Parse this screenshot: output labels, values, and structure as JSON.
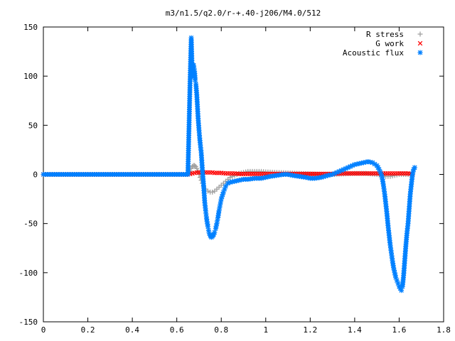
{
  "chart_data": {
    "type": "scatter",
    "title": "m3/n1.5/q2.0/r-+.40-j206/M4.0/512",
    "xlabel": "",
    "ylabel": "",
    "xlim": [
      0,
      1.8
    ],
    "ylim": [
      -150,
      150
    ],
    "x_ticks": [
      "0",
      "0.2",
      "0.4",
      "0.6",
      "0.8",
      "1",
      "1.2",
      "1.4",
      "1.6",
      "1.8"
    ],
    "y_ticks": [
      "150",
      "100",
      "50",
      "0",
      "-50",
      "-100",
      "-150"
    ],
    "grid": false,
    "legend_position": "top-right",
    "series": [
      {
        "name": "R stress",
        "marker": "+",
        "color": "#a0a0a0",
        "points": [
          [
            0.0,
            0
          ],
          [
            0.1,
            0
          ],
          [
            0.2,
            0
          ],
          [
            0.3,
            0
          ],
          [
            0.4,
            0
          ],
          [
            0.5,
            0
          ],
          [
            0.6,
            0
          ],
          [
            0.65,
            0
          ],
          [
            0.66,
            3
          ],
          [
            0.665,
            6
          ],
          [
            0.67,
            8
          ],
          [
            0.675,
            9
          ],
          [
            0.68,
            9
          ],
          [
            0.685,
            8
          ],
          [
            0.69,
            6
          ],
          [
            0.695,
            3
          ],
          [
            0.7,
            0
          ],
          [
            0.705,
            -3
          ],
          [
            0.71,
            -6
          ],
          [
            0.715,
            -9
          ],
          [
            0.72,
            -12
          ],
          [
            0.73,
            -15
          ],
          [
            0.74,
            -17
          ],
          [
            0.75,
            -18
          ],
          [
            0.76,
            -18
          ],
          [
            0.77,
            -17
          ],
          [
            0.78,
            -15
          ],
          [
            0.79,
            -13
          ],
          [
            0.8,
            -11
          ],
          [
            0.81,
            -9
          ],
          [
            0.82,
            -7
          ],
          [
            0.83,
            -5
          ],
          [
            0.84,
            -3
          ],
          [
            0.85,
            -2
          ],
          [
            0.86,
            -1
          ],
          [
            0.87,
            0
          ],
          [
            0.88,
            1
          ],
          [
            0.9,
            2
          ],
          [
            0.92,
            3
          ],
          [
            0.95,
            3
          ],
          [
            0.98,
            3
          ],
          [
            1.0,
            2.5
          ],
          [
            1.05,
            2
          ],
          [
            1.1,
            1.5
          ],
          [
            1.15,
            1
          ],
          [
            1.2,
            0.5
          ],
          [
            1.25,
            0
          ],
          [
            1.3,
            0
          ],
          [
            1.35,
            0.5
          ],
          [
            1.4,
            1
          ],
          [
            1.45,
            1
          ],
          [
            1.5,
            0
          ],
          [
            1.52,
            -1
          ],
          [
            1.54,
            -2
          ],
          [
            1.56,
            -2
          ],
          [
            1.58,
            -1
          ],
          [
            1.6,
            0
          ],
          [
            1.62,
            0
          ],
          [
            1.64,
            0
          ],
          [
            1.66,
            0
          ]
        ]
      },
      {
        "name": "G work",
        "marker": "x",
        "color": "#ff0000",
        "points": [
          [
            0.0,
            0
          ],
          [
            0.1,
            0
          ],
          [
            0.2,
            0
          ],
          [
            0.3,
            0
          ],
          [
            0.4,
            0
          ],
          [
            0.5,
            0
          ],
          [
            0.6,
            0
          ],
          [
            0.65,
            0
          ],
          [
            0.66,
            0.5
          ],
          [
            0.67,
            1
          ],
          [
            0.68,
            1.5
          ],
          [
            0.69,
            2
          ],
          [
            0.7,
            2
          ],
          [
            0.71,
            2
          ],
          [
            0.72,
            2
          ],
          [
            0.73,
            2
          ],
          [
            0.74,
            2
          ],
          [
            0.75,
            2
          ],
          [
            0.76,
            2
          ],
          [
            0.77,
            1.5
          ],
          [
            0.78,
            1.5
          ],
          [
            0.8,
            1.5
          ],
          [
            0.82,
            1
          ],
          [
            0.84,
            1
          ],
          [
            0.86,
            1
          ],
          [
            0.88,
            0.5
          ],
          [
            0.9,
            0.5
          ],
          [
            0.92,
            0.5
          ],
          [
            0.95,
            0.5
          ],
          [
            1.0,
            0.5
          ],
          [
            1.05,
            0.5
          ],
          [
            1.1,
            0.5
          ],
          [
            1.15,
            0.5
          ],
          [
            1.2,
            0.5
          ],
          [
            1.25,
            0.5
          ],
          [
            1.3,
            0.5
          ],
          [
            1.35,
            1
          ],
          [
            1.4,
            1
          ],
          [
            1.45,
            1
          ],
          [
            1.5,
            1
          ],
          [
            1.52,
            1
          ],
          [
            1.54,
            1
          ],
          [
            1.56,
            1
          ],
          [
            1.58,
            1
          ],
          [
            1.6,
            1
          ],
          [
            1.62,
            1
          ],
          [
            1.64,
            1
          ],
          [
            1.66,
            0.5
          ]
        ]
      },
      {
        "name": "Acoustic flux",
        "marker": "*",
        "color": "#0080ff",
        "points": [
          [
            0.0,
            0
          ],
          [
            0.05,
            0
          ],
          [
            0.1,
            0
          ],
          [
            0.15,
            0
          ],
          [
            0.2,
            0
          ],
          [
            0.25,
            0
          ],
          [
            0.3,
            0
          ],
          [
            0.35,
            0
          ],
          [
            0.4,
            0
          ],
          [
            0.45,
            0
          ],
          [
            0.5,
            0
          ],
          [
            0.55,
            0
          ],
          [
            0.6,
            0
          ],
          [
            0.62,
            0
          ],
          [
            0.64,
            0
          ],
          [
            0.65,
            0
          ],
          [
            0.66,
            97
          ],
          [
            0.665,
            139
          ],
          [
            0.67,
            100
          ],
          [
            0.673,
            111
          ],
          [
            0.676,
            111
          ],
          [
            0.68,
            105
          ],
          [
            0.683,
            96
          ],
          [
            0.686,
            92
          ],
          [
            0.69,
            81
          ],
          [
            0.693,
            69
          ],
          [
            0.696,
            57
          ],
          [
            0.7,
            45
          ],
          [
            0.703,
            37
          ],
          [
            0.706,
            30
          ],
          [
            0.71,
            22
          ],
          [
            0.713,
            12
          ],
          [
            0.716,
            2
          ],
          [
            0.72,
            -9
          ],
          [
            0.723,
            -19
          ],
          [
            0.726,
            -29
          ],
          [
            0.73,
            -37
          ],
          [
            0.733,
            -43
          ],
          [
            0.736,
            -48
          ],
          [
            0.74,
            -53
          ],
          [
            0.743,
            -57
          ],
          [
            0.746,
            -60
          ],
          [
            0.75,
            -62
          ],
          [
            0.753,
            -63
          ],
          [
            0.756,
            -64
          ],
          [
            0.76,
            -63
          ],
          [
            0.763,
            -62
          ],
          [
            0.766,
            -61
          ],
          [
            0.77,
            -59
          ],
          [
            0.775,
            -55
          ],
          [
            0.78,
            -50
          ],
          [
            0.785,
            -44
          ],
          [
            0.79,
            -37
          ],
          [
            0.795,
            -31
          ],
          [
            0.8,
            -25
          ],
          [
            0.81,
            -18
          ],
          [
            0.82,
            -12
          ],
          [
            0.83,
            -9
          ],
          [
            0.84,
            -8
          ],
          [
            0.86,
            -7
          ],
          [
            0.88,
            -6
          ],
          [
            0.9,
            -5
          ],
          [
            0.92,
            -5
          ],
          [
            0.95,
            -4
          ],
          [
            0.98,
            -4
          ],
          [
            1.0,
            -3
          ],
          [
            1.02,
            -2
          ],
          [
            1.05,
            -1
          ],
          [
            1.08,
            0
          ],
          [
            1.1,
            0
          ],
          [
            1.12,
            -1
          ],
          [
            1.15,
            -2
          ],
          [
            1.18,
            -3
          ],
          [
            1.2,
            -4
          ],
          [
            1.22,
            -4
          ],
          [
            1.25,
            -3
          ],
          [
            1.28,
            -1
          ],
          [
            1.3,
            0
          ],
          [
            1.32,
            2
          ],
          [
            1.35,
            5
          ],
          [
            1.38,
            8
          ],
          [
            1.4,
            10
          ],
          [
            1.42,
            11
          ],
          [
            1.44,
            12
          ],
          [
            1.46,
            13
          ],
          [
            1.48,
            12
          ],
          [
            1.5,
            9
          ],
          [
            1.51,
            5
          ],
          [
            1.52,
            0
          ],
          [
            1.525,
            -5
          ],
          [
            1.53,
            -12
          ],
          [
            1.535,
            -20
          ],
          [
            1.54,
            -30
          ],
          [
            1.545,
            -40
          ],
          [
            1.55,
            -52
          ],
          [
            1.555,
            -62
          ],
          [
            1.56,
            -72
          ],
          [
            1.565,
            -80
          ],
          [
            1.57,
            -88
          ],
          [
            1.575,
            -95
          ],
          [
            1.58,
            -100
          ],
          [
            1.585,
            -105
          ],
          [
            1.59,
            -108
          ],
          [
            1.595,
            -111
          ],
          [
            1.6,
            -114
          ],
          [
            1.605,
            -116
          ],
          [
            1.61,
            -118
          ],
          [
            1.615,
            -114
          ],
          [
            1.62,
            -103
          ],
          [
            1.625,
            -88
          ],
          [
            1.63,
            -73
          ],
          [
            1.635,
            -60
          ],
          [
            1.64,
            -50
          ],
          [
            1.645,
            -35
          ],
          [
            1.65,
            -20
          ],
          [
            1.655,
            -10
          ],
          [
            1.66,
            0
          ],
          [
            1.665,
            5
          ],
          [
            1.67,
            7
          ]
        ]
      }
    ]
  }
}
